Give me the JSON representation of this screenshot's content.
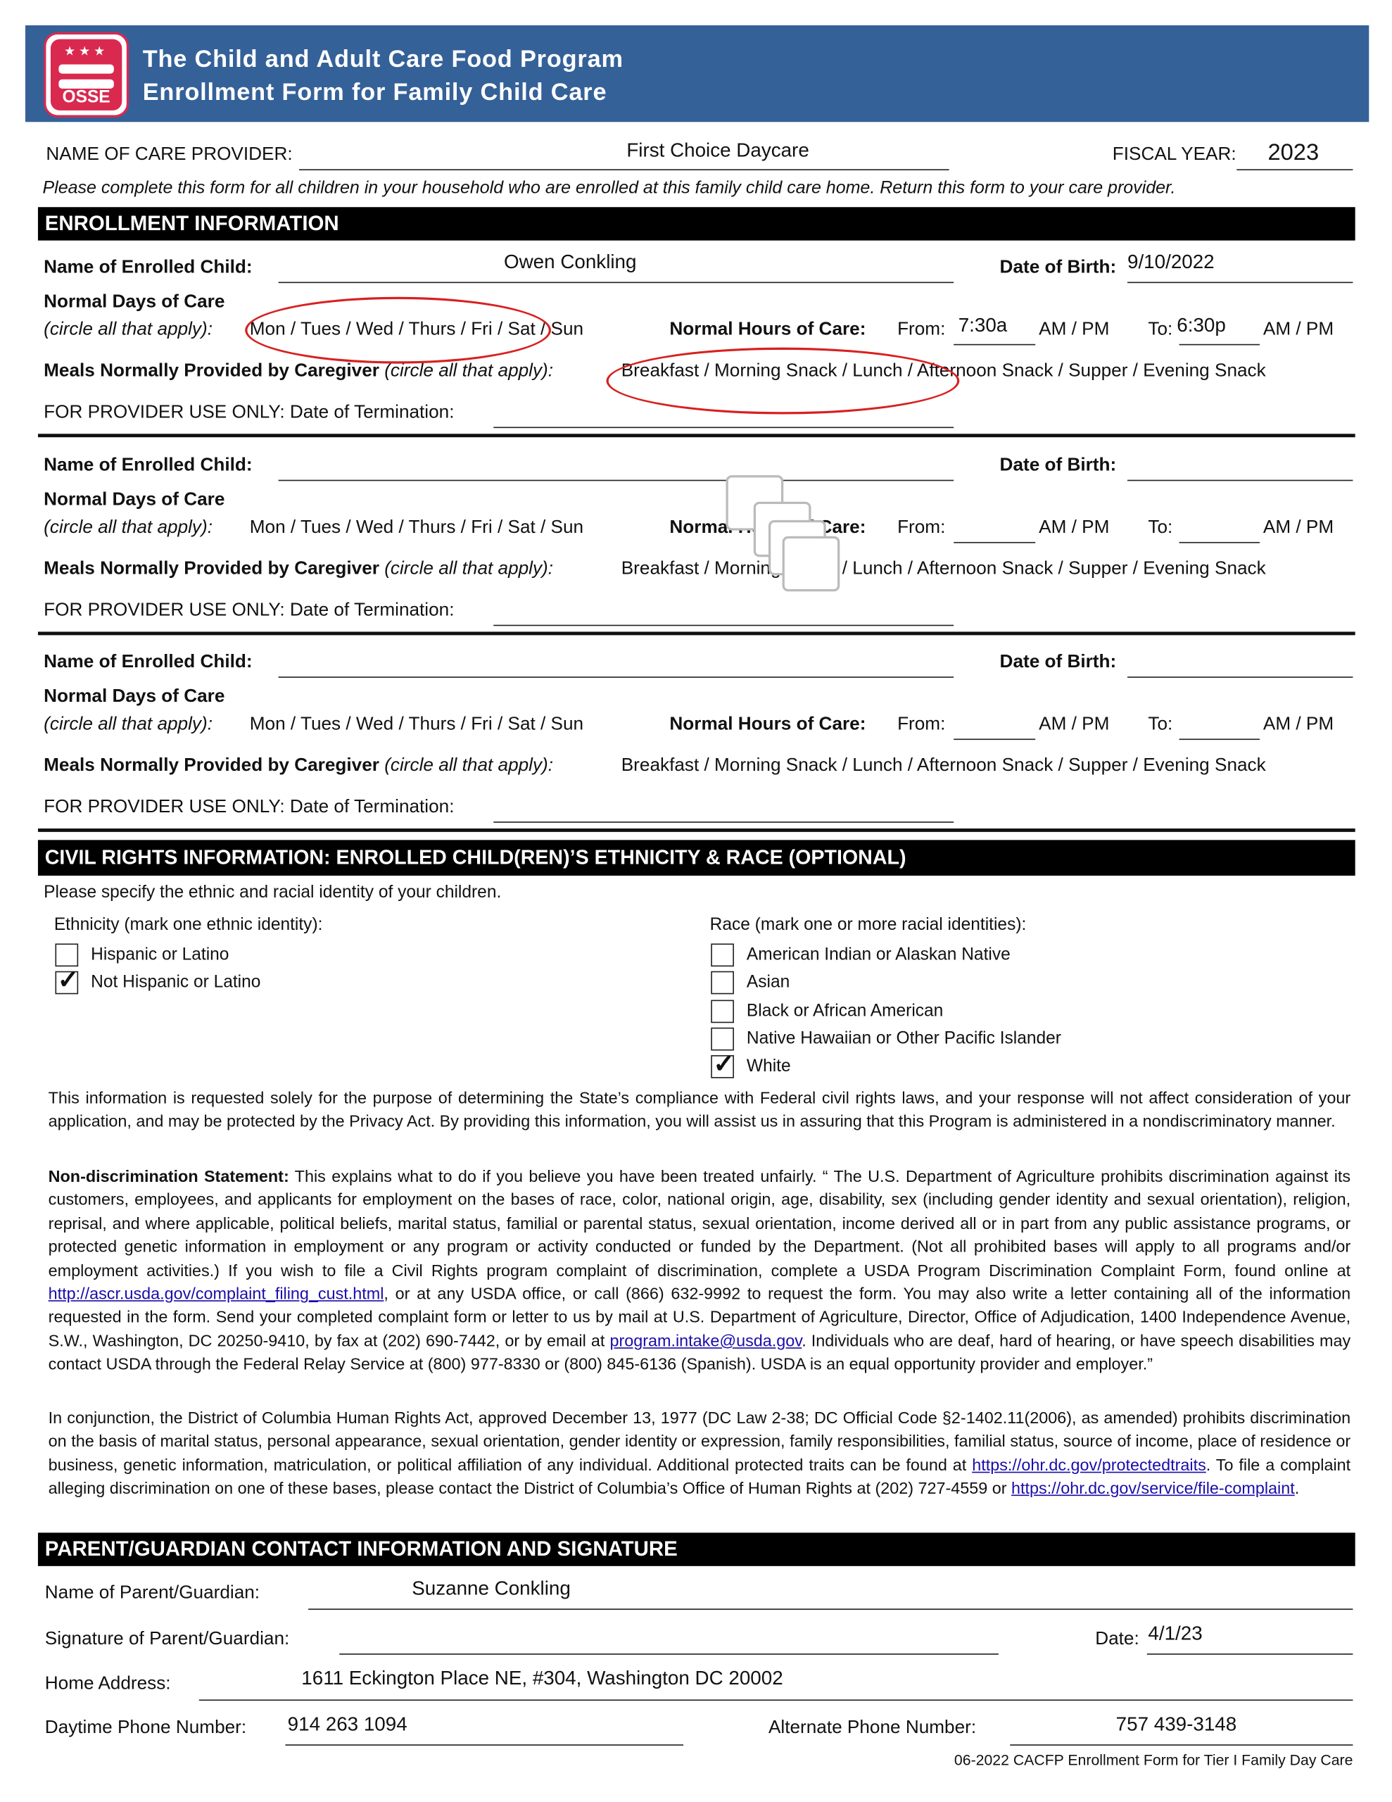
{
  "header": {
    "logo_text": "OSSE",
    "title_line1": "The Child and Adult Care Food Program",
    "title_line2": "Enrollment Form for Family Child Care"
  },
  "provider": {
    "label": "NAME OF CARE PROVIDER:",
    "value": "First Choice Daycare",
    "fiscal_label": "FISCAL YEAR:",
    "fiscal_value": "2023"
  },
  "instruction": "Please complete this form for all children in your household who are enrolled at this family child care home. Return this form to your care provider.",
  "enrollment": {
    "section_title": "ENROLLMENT INFORMATION",
    "labels": {
      "child_name": "Name of Enrolled Child:",
      "dob": "Date of Birth:",
      "days": "Normal Days of Care",
      "circle": "(circle all that apply):",
      "days_options": "Mon / Tues / Wed / Thurs / Fri / Sat / Sun",
      "hours": "Normal Hours of Care:",
      "from": "From:",
      "ampm": "AM / PM",
      "to": "To:",
      "meals": "Meals Normally Provided by Caregiver",
      "meals_options": "Breakfast / Morning Snack / Lunch / Afternoon Snack / Supper / Evening Snack",
      "termination": "FOR PROVIDER USE ONLY: Date of Termination:"
    },
    "children": [
      {
        "name": "Owen Conkling",
        "dob": "9/10/2022",
        "from": "7:30a",
        "to": "6:30p",
        "circled_days": "Mon / Tues / Wed / Thurs / Fri",
        "circled_meals": "Breakfast / Morning Snack / Lunch",
        "termination": ""
      },
      {
        "name": "",
        "dob": "",
        "from": "",
        "to": "",
        "termination": ""
      },
      {
        "name": "",
        "dob": "",
        "from": "",
        "to": "",
        "termination": ""
      }
    ],
    "circle_color": "#d82020"
  },
  "civil_rights": {
    "section_title": "CIVIL RIGHTS INFORMATION: ENROLLED CHILD(REN)’S ETHNICITY & RACE (OPTIONAL)",
    "intro": "Please specify the ethnic and racial identity of your children.",
    "ethnicity_label": "Ethnicity (mark one ethnic identity):",
    "ethnicity": [
      {
        "label": "Hispanic or Latino",
        "checked": false
      },
      {
        "label": "Not Hispanic or Latino",
        "checked": true
      }
    ],
    "race_label": "Race (mark one or more racial identities):",
    "race": [
      {
        "label": "American Indian or Alaskan Native",
        "checked": false
      },
      {
        "label": "Asian",
        "checked": false
      },
      {
        "label": "Black or African American",
        "checked": false
      },
      {
        "label": "Native Hawaiian or Other Pacific Islander",
        "checked": false
      },
      {
        "label": "White",
        "checked": true
      }
    ],
    "privacy": "This information is requested solely for the purpose of determining the State’s compliance with Federal civil rights laws, and your response will not affect consideration of your application, and may be protected by the Privacy Act. By providing this information, you will assist us in assuring that this Program is administered in a nondiscriminatory manner.",
    "nondisc_title": "Non-discrimination Statement:",
    "nondisc_1": " This explains what to do if you believe you have been treated unfairly. “ The U.S. Department of Agriculture prohibits discrimination against its customers, employees, and applicants for employment on the bases of race, color, national origin, age, disability, sex (including gender identity and sexual orientation), religion, reprisal, and where applicable, political beliefs, marital status, familial or parental status, sexual orientation, income derived all or in part from any public assistance programs, or protected genetic information in employment or any program or activity conducted or funded by the Department. (Not all prohibited bases will apply to all programs and/or employment activities.) If you wish to file a Civil Rights program complaint of discrimination, complete a USDA Program Discrimination Complaint Form, found online at ",
    "link_1": "http://ascr.usda.gov/complaint_filing_cust.html",
    "nondisc_2": ", or at any USDA office, or call (866) 632-9992 to request the form. You may also write a letter containing all of the information requested in the form. Send your completed complaint form or letter to us by mail at U.S. Department of Agriculture, Director, Office of Adjudication, 1400 Independence Avenue, S.W., Washington, DC 20250-9410, by fax at (202) 690-7442, or by email at ",
    "link_2": "program.intake@usda.gov",
    "nondisc_3": ". Individuals who are deaf, hard of hearing, or have speech disabilities may contact USDA through the Federal Relay Service at (800) 977-8330 or (800) 845-6136 (Spanish). USDA is an equal opportunity provider and employer.”",
    "dc_1": "In conjunction, the District of Columbia Human Rights Act, approved December 13, 1977 (DC Law 2-38; DC Official Code §2-1402.11(2006), as amended) prohibits discrimination on the basis of marital status, personal appearance, sexual orientation, gender identity or expression, family responsibilities, familial status, source of income, place of residence or business, genetic information, matriculation, or political affiliation of any individual. Additional protected traits can be found at ",
    "link_3": "https://ohr.dc.gov/protectedtraits",
    "dc_2": ". To file a complaint alleging discrimination on one of these bases, please contact the District of Columbia’s Office of Human Rights at (202) 727-4559 or ",
    "link_4": "https://ohr.dc.gov/service/file-complaint",
    "dc_3": "."
  },
  "parent": {
    "section_title": "PARENT/GUARDIAN CONTACT INFORMATION AND SIGNATURE",
    "name_label": "Name of Parent/Guardian:",
    "name": "Suzanne Conkling",
    "signature_label": "Signature of Parent/Guardian:",
    "signature": "",
    "date_label": "Date:",
    "date": "4/1/23",
    "address_label": "Home Address:",
    "address": "1611 Eckington Place NE, #304, Washington DC 20002",
    "phone_label": "Daytime Phone Number:",
    "phone": "914 263 1094",
    "alt_phone_label": "Alternate Phone Number:",
    "alt_phone": "757 439-3148"
  },
  "footer": "06-2022 CACFP Enrollment Form for Tier I Family Day Care",
  "colors": {
    "header_bg": "#356199",
    "logo_red": "#d9294f",
    "link": "#1a0dab"
  }
}
